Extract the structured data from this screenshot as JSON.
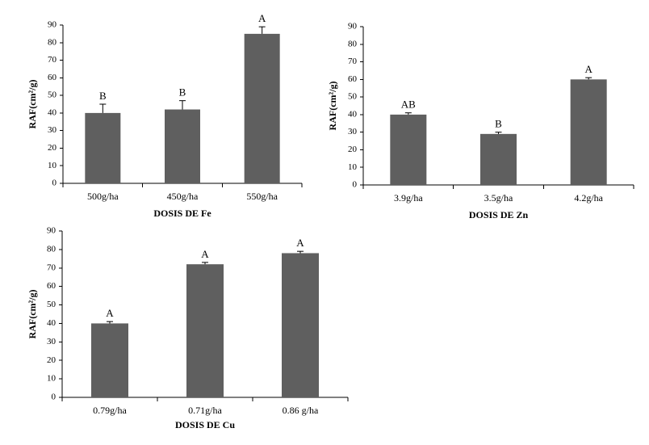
{
  "chart_data": [
    {
      "type": "bar",
      "categories": [
        "500g/ha",
        "450g/ha",
        "550g/ha"
      ],
      "values": [
        40,
        42,
        85
      ],
      "errors": [
        5,
        5,
        4
      ],
      "letters": [
        "B",
        "B",
        "A"
      ],
      "xlabel": "DOSIS DE Fe",
      "ylabel": "RAF(cm²/g)",
      "ylim": [
        0,
        90
      ],
      "yticks": [
        0,
        10,
        20,
        30,
        40,
        50,
        60,
        70,
        80,
        90
      ],
      "colors": {
        "bar": "#5f5f5f"
      },
      "grid": false,
      "legend": "none"
    },
    {
      "type": "bar",
      "categories": [
        "3.9g/ha",
        "3.5g/ha",
        "4.2g/ha"
      ],
      "values": [
        40,
        29,
        60
      ],
      "errors": [
        1,
        1,
        1
      ],
      "letters": [
        "AB",
        "B",
        "A"
      ],
      "xlabel": "DOSIS DE Zn",
      "ylabel": "RAF(cm²/g)",
      "ylim": [
        0,
        90
      ],
      "yticks": [
        0,
        10,
        20,
        30,
        40,
        50,
        60,
        70,
        80,
        90
      ],
      "colors": {
        "bar": "#5f5f5f"
      },
      "grid": false,
      "legend": "none"
    },
    {
      "type": "bar",
      "categories": [
        "0.79g/ha",
        "0.71g/ha",
        "0.86 g/ha"
      ],
      "values": [
        40,
        72,
        78
      ],
      "errors": [
        1,
        1,
        1
      ],
      "letters": [
        "A",
        "A",
        "A"
      ],
      "xlabel": "DOSIS DE Cu",
      "ylabel": "RAF(cm²/g)",
      "ylim": [
        0,
        90
      ],
      "yticks": [
        0,
        10,
        20,
        30,
        40,
        50,
        60,
        70,
        80,
        90
      ],
      "colors": {
        "bar": "#5f5f5f"
      },
      "grid": false,
      "legend": "none"
    }
  ]
}
